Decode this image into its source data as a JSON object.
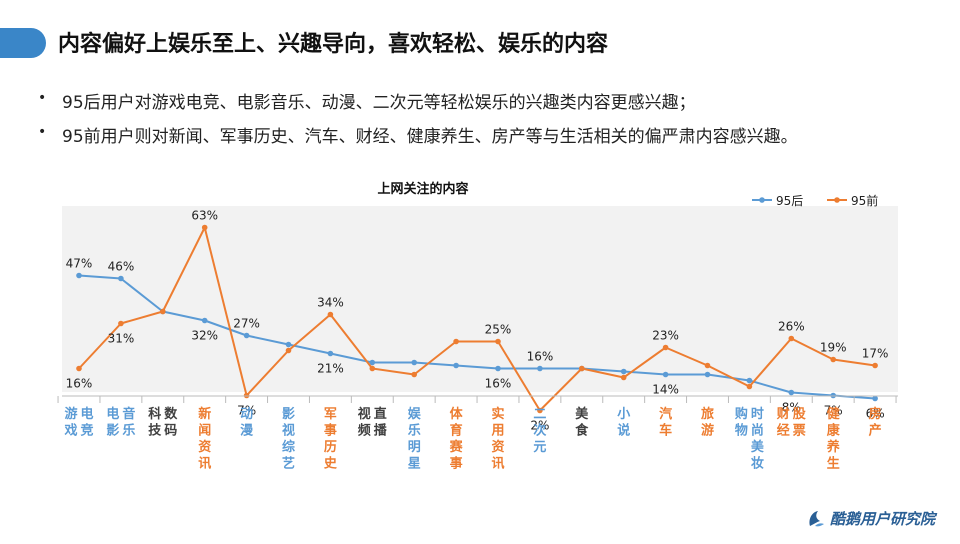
{
  "header": {
    "title": "内容偏好上娱乐至上、兴趣导向，喜欢轻松、娱乐的内容"
  },
  "bullets": [
    "95后用户对游戏电竞、电影音乐、动漫、二次元等轻松娱乐的兴趣类内容更感兴趣；",
    "95前用户则对新闻、军事历史、汽车、财经、健康养生、房产等与生活相关的偏严肃内容感兴趣。"
  ],
  "brand": {
    "name": "酷鹅用户研究院"
  },
  "colors": {
    "accent": "#3a86c8",
    "post95": "#5b9bd5",
    "pre95": "#ed7d31",
    "neutral": "#404040",
    "plot_bg": "#f2f2f2"
  },
  "chart_data": {
    "type": "line",
    "title": "上网关注的内容",
    "legend_position": "top-right",
    "grid": false,
    "ylim": [
      0,
      70
    ],
    "categories": [
      "游戏电竞",
      "电影音乐",
      "科技数码",
      "新闻资讯",
      "动漫",
      "影视综艺",
      "军事历史",
      "视频直播",
      "娱乐明星",
      "体育赛事",
      "实用资讯",
      "二次元",
      "美食",
      "小说",
      "汽车",
      "旅游",
      "购物时尚美妆",
      "财经股票",
      "健康养生",
      "房产"
    ],
    "category_lines": [
      [
        "游戏",
        "电竞"
      ],
      [
        "电影",
        "音乐"
      ],
      [
        "科技",
        "数码"
      ],
      [
        "新闻资讯"
      ],
      [
        "动漫"
      ],
      [
        "影视综艺"
      ],
      [
        "军事历史"
      ],
      [
        "视频",
        "直播"
      ],
      [
        "娱乐明星"
      ],
      [
        "体育赛事"
      ],
      [
        "实用资讯"
      ],
      [
        "二次元"
      ],
      [
        "美食"
      ],
      [
        "小说"
      ],
      [
        "汽车"
      ],
      [
        "旅游"
      ],
      [
        "购物",
        "时尚美妆"
      ],
      [
        "财经",
        "股票"
      ],
      [
        "健康养生"
      ],
      [
        "房产"
      ]
    ],
    "category_colors": [
      "post95",
      "post95",
      "neutral",
      "pre95",
      "post95",
      "post95",
      "pre95",
      "neutral",
      "post95",
      "pre95",
      "pre95",
      "post95",
      "neutral",
      "post95",
      "pre95",
      "pre95",
      "post95",
      "pre95",
      "pre95",
      "pre95"
    ],
    "series": [
      {
        "name": "95后",
        "color": "#5b9bd5",
        "values": [
          47,
          46,
          35,
          32,
          27,
          24,
          21,
          18,
          18,
          17,
          16,
          16,
          16,
          15,
          14,
          14,
          12,
          8,
          7,
          6
        ],
        "labels": [
          "47%",
          "46%",
          "",
          "32%",
          "27%",
          "",
          "21%",
          "",
          "",
          "",
          "16%",
          "16%",
          "",
          "",
          "14%",
          "",
          "",
          "8%",
          "7%",
          "6%"
        ]
      },
      {
        "name": "95前",
        "color": "#ed7d31",
        "values": [
          16,
          31,
          35,
          63,
          7,
          22,
          34,
          16,
          14,
          25,
          25,
          2,
          16,
          13,
          23,
          17,
          10,
          26,
          19,
          17
        ],
        "labels": [
          "16%",
          "31%",
          "",
          "63%",
          "7%",
          "",
          "34%",
          "",
          "",
          "",
          "25%",
          "2%",
          "",
          "",
          "23%",
          "",
          "",
          "26%",
          "19%",
          "17%"
        ]
      }
    ]
  }
}
